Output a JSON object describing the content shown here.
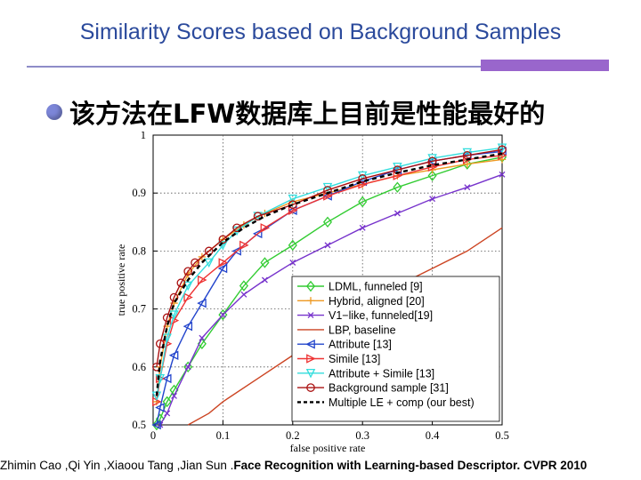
{
  "slide": {
    "title": "Similarity Scores based on Background Samples",
    "bullet": "该方法在LFW数据库上目前是性能最好的",
    "citation_authors": "Zhimin Cao ,Qi Yin ,Xiaoou Tang ,Jian Sun .",
    "citation_title": "Face Recognition with Learning-based Descriptor. CVPR 2010"
  },
  "colors": {
    "title": "#2b4a9c",
    "rule": "#8e8cc8",
    "accent": "#9966cc",
    "bullet": "#7c86d8"
  },
  "chart_data": {
    "type": "line",
    "xlabel": "false positive rate",
    "ylabel": "true positive rate",
    "xlim": [
      0,
      0.5
    ],
    "ylim": [
      0.5,
      1.0
    ],
    "xticks": [
      "0",
      "0.1",
      "0.2",
      "0.3",
      "0.4",
      "0.5"
    ],
    "yticks": [
      "0.5",
      "0.6",
      "0.7",
      "0.8",
      "0.9",
      "1"
    ],
    "grid": "dotted",
    "legend_position": "bottom-right",
    "series": [
      {
        "name": "LDML, funneled [9]",
        "color": "#33cc33",
        "marker": "diamond",
        "dash": "solid",
        "x": [
          0.005,
          0.01,
          0.02,
          0.03,
          0.05,
          0.07,
          0.1,
          0.13,
          0.16,
          0.2,
          0.25,
          0.3,
          0.35,
          0.4,
          0.45,
          0.5
        ],
        "y": [
          0.5,
          0.51,
          0.54,
          0.56,
          0.6,
          0.64,
          0.69,
          0.74,
          0.78,
          0.81,
          0.85,
          0.885,
          0.91,
          0.93,
          0.95,
          0.962
        ]
      },
      {
        "name": "Hybrid, aligned [20]",
        "color": "#ee9922",
        "marker": "plus",
        "dash": "solid",
        "x": [
          0.005,
          0.01,
          0.02,
          0.03,
          0.05,
          0.07,
          0.1,
          0.13,
          0.16,
          0.2,
          0.25,
          0.3,
          0.35,
          0.4,
          0.45,
          0.5
        ],
        "y": [
          0.54,
          0.6,
          0.67,
          0.71,
          0.76,
          0.79,
          0.82,
          0.845,
          0.865,
          0.885,
          0.9,
          0.915,
          0.93,
          0.94,
          0.95,
          0.958
        ]
      },
      {
        "name": "V1−like, funneled[19]",
        "color": "#7733cc",
        "marker": "x",
        "dash": "solid",
        "x": [
          0.01,
          0.02,
          0.03,
          0.05,
          0.07,
          0.1,
          0.13,
          0.16,
          0.2,
          0.25,
          0.3,
          0.35,
          0.4,
          0.45,
          0.5
        ],
        "y": [
          0.5,
          0.52,
          0.55,
          0.6,
          0.65,
          0.69,
          0.725,
          0.75,
          0.78,
          0.81,
          0.84,
          0.865,
          0.89,
          0.91,
          0.932
        ]
      },
      {
        "name": "LBP, baseline",
        "color": "#cc4422",
        "marker": "none",
        "dash": "solid",
        "x": [
          0.05,
          0.08,
          0.1,
          0.15,
          0.2,
          0.25,
          0.3,
          0.35,
          0.4,
          0.45,
          0.5
        ],
        "y": [
          0.5,
          0.52,
          0.54,
          0.58,
          0.62,
          0.66,
          0.7,
          0.74,
          0.77,
          0.8,
          0.84
        ]
      },
      {
        "name": "Attribute [13]",
        "color": "#2244cc",
        "marker": "triangle-left",
        "dash": "solid",
        "x": [
          0.005,
          0.01,
          0.02,
          0.03,
          0.05,
          0.07,
          0.1,
          0.12,
          0.15,
          0.2,
          0.25,
          0.3,
          0.35,
          0.4,
          0.45,
          0.5
        ],
        "y": [
          0.5,
          0.53,
          0.58,
          0.62,
          0.67,
          0.71,
          0.77,
          0.8,
          0.83,
          0.87,
          0.895,
          0.92,
          0.94,
          0.955,
          0.965,
          0.972
        ]
      },
      {
        "name": "Simile [13]",
        "color": "#ee3333",
        "marker": "triangle-right",
        "dash": "solid",
        "x": [
          0.005,
          0.01,
          0.02,
          0.03,
          0.05,
          0.07,
          0.1,
          0.13,
          0.16,
          0.2,
          0.25,
          0.3,
          0.35,
          0.4,
          0.45,
          0.5
        ],
        "y": [
          0.54,
          0.58,
          0.64,
          0.68,
          0.72,
          0.75,
          0.78,
          0.81,
          0.84,
          0.87,
          0.895,
          0.915,
          0.93,
          0.945,
          0.958,
          0.965
        ]
      },
      {
        "name": "Attribute + Simile [13]",
        "color": "#33dddd",
        "marker": "triangle-down",
        "dash": "solid",
        "x": [
          0.005,
          0.01,
          0.02,
          0.03,
          0.05,
          0.08,
          0.1,
          0.12,
          0.15,
          0.2,
          0.25,
          0.3,
          0.35,
          0.4,
          0.45,
          0.5
        ],
        "y": [
          0.55,
          0.58,
          0.65,
          0.69,
          0.74,
          0.78,
          0.81,
          0.835,
          0.86,
          0.89,
          0.91,
          0.93,
          0.945,
          0.96,
          0.97,
          0.978
        ]
      },
      {
        "name": "Background sample [31]",
        "color": "#aa1111",
        "marker": "circle",
        "dash": "solid",
        "x": [
          0.005,
          0.01,
          0.02,
          0.03,
          0.04,
          0.05,
          0.06,
          0.08,
          0.1,
          0.12,
          0.15,
          0.2,
          0.25,
          0.3,
          0.35,
          0.4,
          0.45,
          0.5
        ],
        "y": [
          0.6,
          0.64,
          0.685,
          0.72,
          0.745,
          0.765,
          0.78,
          0.8,
          0.82,
          0.84,
          0.86,
          0.88,
          0.905,
          0.925,
          0.94,
          0.955,
          0.965,
          0.975
        ]
      },
      {
        "name": "Multiple LE + comp (our best)",
        "color": "#000000",
        "marker": "none",
        "dash": "dashed",
        "x": [
          0.005,
          0.01,
          0.02,
          0.03,
          0.05,
          0.07,
          0.1,
          0.13,
          0.16,
          0.2,
          0.25,
          0.3,
          0.35,
          0.4,
          0.45,
          0.5
        ],
        "y": [
          0.55,
          0.61,
          0.67,
          0.71,
          0.75,
          0.78,
          0.815,
          0.84,
          0.86,
          0.88,
          0.9,
          0.92,
          0.935,
          0.948,
          0.958,
          0.968
        ]
      }
    ]
  }
}
